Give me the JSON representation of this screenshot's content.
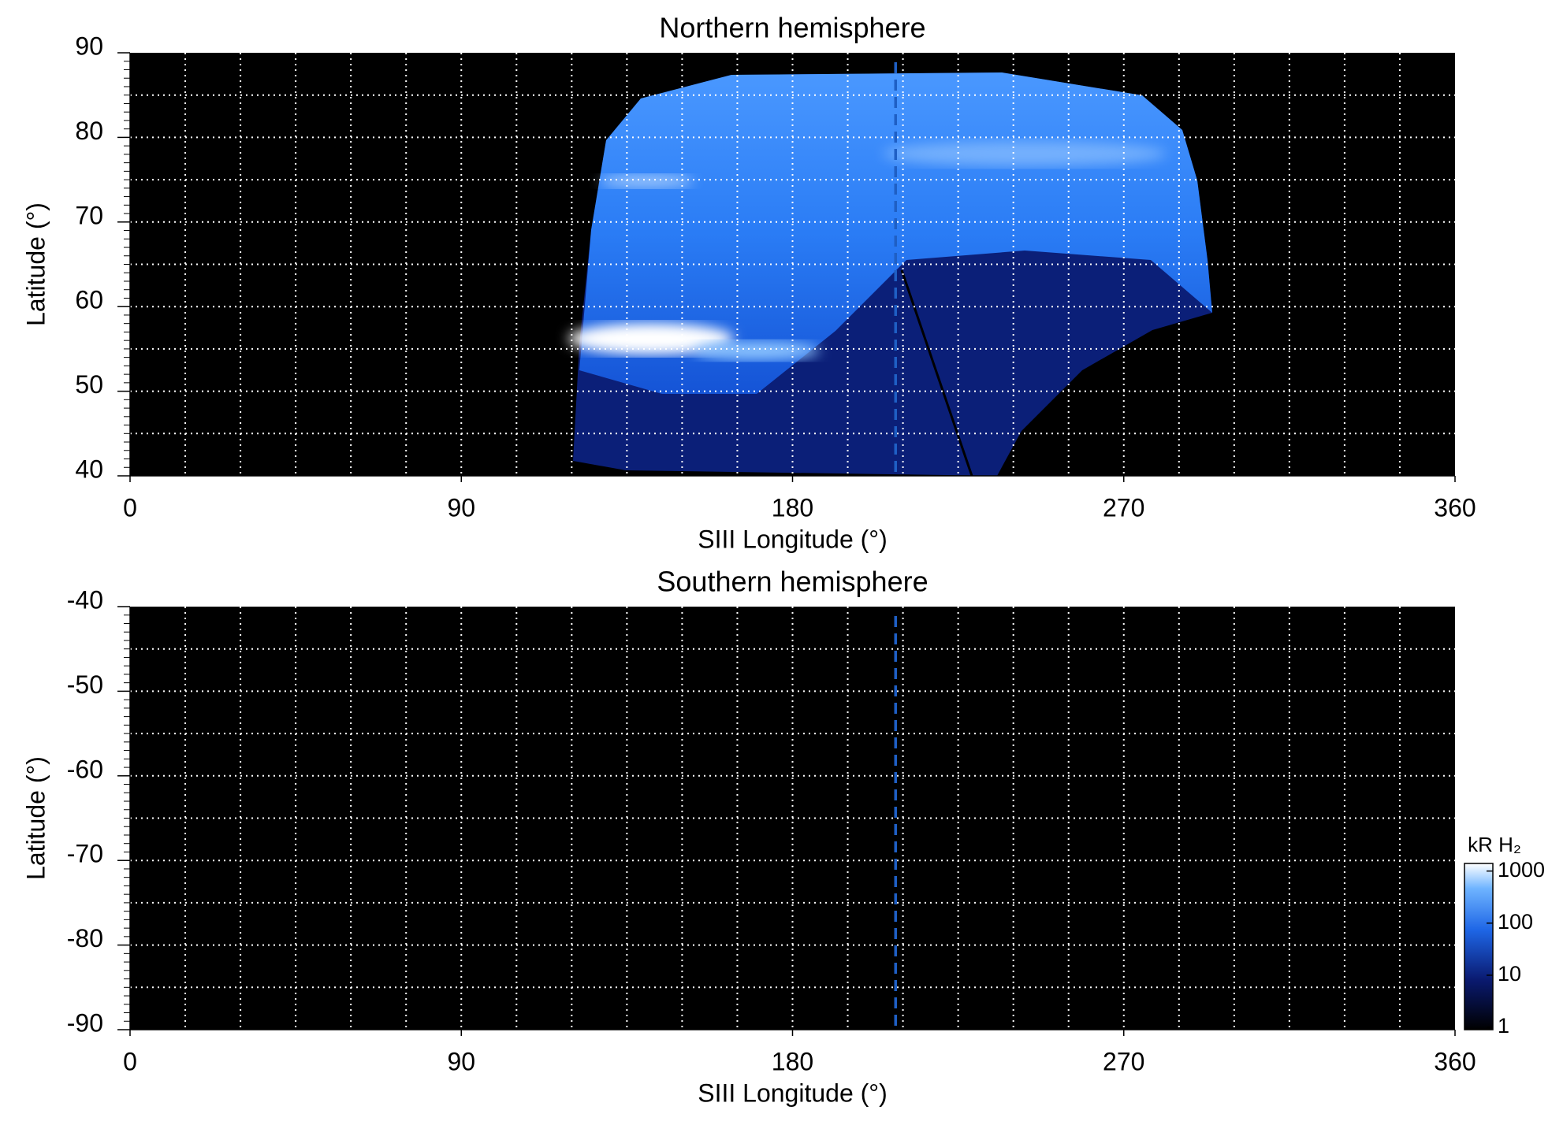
{
  "chart_data": [
    {
      "type": "heatmap",
      "title": "Northern hemisphere",
      "xlabel": "SIII Longitude (°)",
      "ylabel": "Latitude (°)",
      "xlim": [
        0,
        360
      ],
      "ylim": [
        40,
        90
      ],
      "xticks": [
        0,
        90,
        180,
        270,
        360
      ],
      "yticks": [
        40,
        50,
        60,
        70,
        80,
        90
      ],
      "grid_x_step": 15,
      "grid_y_step": 5,
      "y_minor_step": 1,
      "marker_x": 208,
      "marker_color": "#1f5fc4"
    },
    {
      "type": "heatmap",
      "title": "Southern hemisphere",
      "xlabel": "SIII Longitude (°)",
      "ylabel": "Latitude (°)",
      "xlim": [
        0,
        360
      ],
      "ylim": [
        -90,
        -40
      ],
      "xticks": [
        0,
        90,
        180,
        270,
        360
      ],
      "yticks": [
        -90,
        -80,
        -70,
        -60,
        -50,
        -40
      ],
      "grid_x_step": 15,
      "grid_y_step": 5,
      "y_minor_step": 1,
      "marker_x": 208,
      "marker_color": "#1f5fc4",
      "colorbar": {
        "label": "kR H₂",
        "lim": [
          0.9,
          1400
        ],
        "ticks": [
          1,
          10,
          100,
          1000
        ],
        "log": true
      }
    }
  ]
}
